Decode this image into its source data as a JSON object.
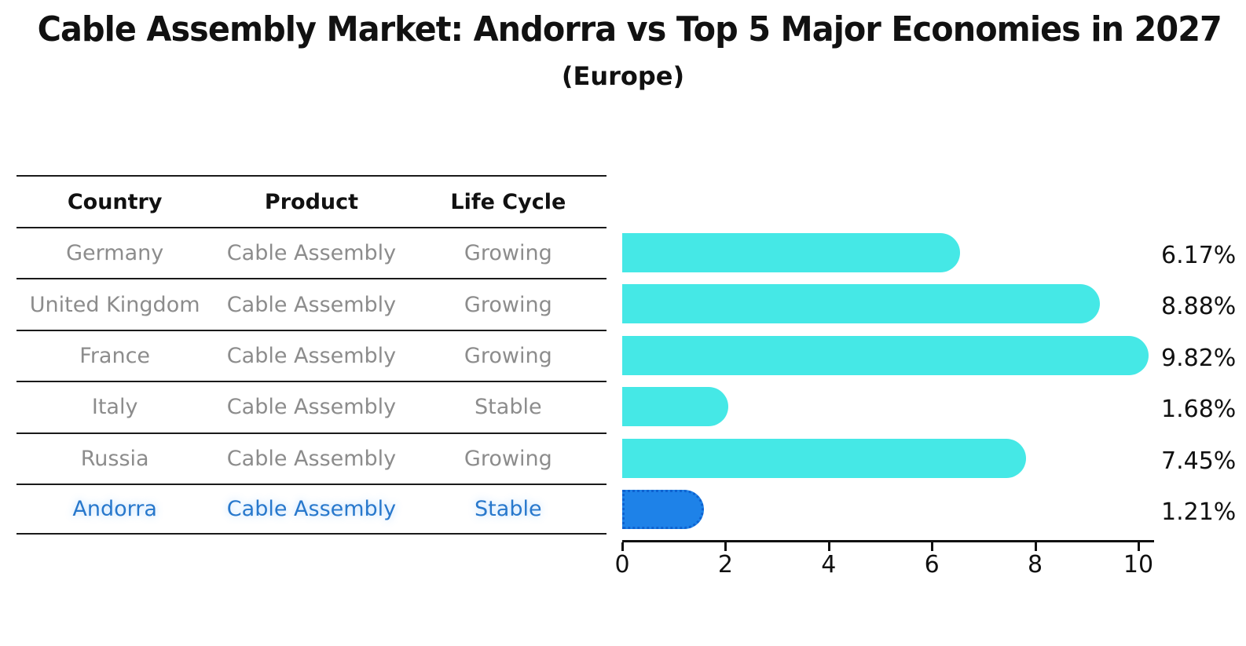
{
  "title": "Cable Assembly Market: Andorra vs Top 5 Major Economies in 2027",
  "subtitle": "(Europe)",
  "table": {
    "headers": [
      "Country",
      "Product",
      "Life Cycle"
    ],
    "rows": [
      {
        "country": "Germany",
        "product": "Cable Assembly",
        "life_cycle": "Growing"
      },
      {
        "country": "United Kingdom",
        "product": "Cable Assembly",
        "life_cycle": "Growing"
      },
      {
        "country": "France",
        "product": "Cable Assembly",
        "life_cycle": "Growing"
      },
      {
        "country": "Italy",
        "product": "Cable Assembly",
        "life_cycle": "Stable"
      },
      {
        "country": "Russia",
        "product": "Cable Assembly",
        "life_cycle": "Growing"
      },
      {
        "country": "Andorra",
        "product": "Cable Assembly",
        "life_cycle": "Stable"
      }
    ],
    "highlight_row": "Andorra"
  },
  "chart_data": {
    "type": "bar",
    "orientation": "horizontal",
    "categories": [
      "Germany",
      "United Kingdom",
      "France",
      "Italy",
      "Russia",
      "Andorra"
    ],
    "values": [
      6.17,
      8.88,
      9.82,
      1.68,
      7.45,
      1.21
    ],
    "value_labels": [
      "6.17%",
      "8.88%",
      "9.82%",
      "1.68%",
      "7.45%",
      "1.21%"
    ],
    "xlabel": "",
    "ylabel": "",
    "xlim": [
      0,
      10.3
    ],
    "x_ticks": [
      0,
      2,
      4,
      6,
      8,
      10
    ],
    "grid": false,
    "legend": false,
    "bar_color": "#45E8E6",
    "highlight_color": "#1E82E8",
    "highlight_index": 5
  },
  "colors": {
    "text_dark": "#111111",
    "text_muted": "#8c8c8c",
    "line": "#1a1a1a",
    "highlight_text": "#2878CC",
    "highlight_border": "#0E62D0"
  }
}
